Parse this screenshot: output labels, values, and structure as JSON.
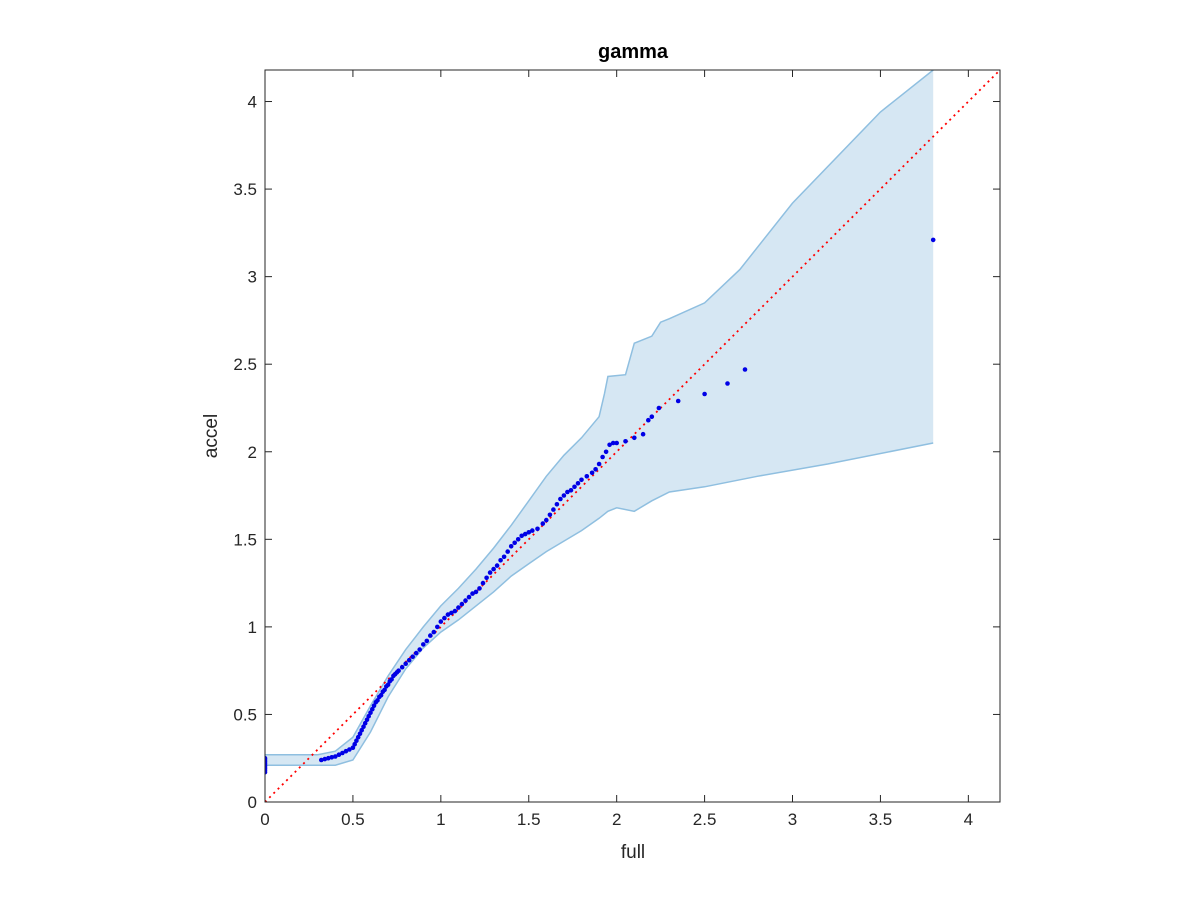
{
  "chart_data": {
    "type": "scatter",
    "title": "gamma",
    "xlabel": "full",
    "ylabel": "accel",
    "xlim": [
      0,
      4.18
    ],
    "ylim": [
      0,
      4.18
    ],
    "xticks": [
      0,
      0.5,
      1,
      1.5,
      2,
      2.5,
      3,
      3.5,
      4
    ],
    "yticks": [
      0,
      0.5,
      1,
      1.5,
      2,
      2.5,
      3,
      3.5,
      4
    ],
    "xtick_labels": [
      "0",
      "0.5",
      "1",
      "1.5",
      "2",
      "2.5",
      "3",
      "3.5",
      "4"
    ],
    "ytick_labels": [
      "0",
      "0.5",
      "1",
      "1.5",
      "2",
      "2.5",
      "3",
      "3.5",
      "4"
    ],
    "grid": false,
    "legend": "none",
    "colors": {
      "points": "#0000e6",
      "band_fill": "#d6e7f3",
      "band_edge": "#8fbfe0",
      "reference_line": "#ff0000"
    },
    "reference_line": {
      "x": [
        0,
        4.18
      ],
      "y": [
        0,
        4.18
      ],
      "style": "dotted"
    },
    "confidence_band": {
      "upper": [
        [
          0,
          0.27
        ],
        [
          0.3,
          0.27
        ],
        [
          0.4,
          0.29
        ],
        [
          0.5,
          0.37
        ],
        [
          0.6,
          0.55
        ],
        [
          0.7,
          0.72
        ],
        [
          0.8,
          0.87
        ],
        [
          0.9,
          1.0
        ],
        [
          1.0,
          1.12
        ],
        [
          1.1,
          1.22
        ],
        [
          1.2,
          1.33
        ],
        [
          1.3,
          1.45
        ],
        [
          1.4,
          1.58
        ],
        [
          1.5,
          1.72
        ],
        [
          1.6,
          1.86
        ],
        [
          1.7,
          1.98
        ],
        [
          1.8,
          2.08
        ],
        [
          1.9,
          2.2
        ],
        [
          1.93,
          2.33
        ],
        [
          1.95,
          2.43
        ],
        [
          2.05,
          2.44
        ],
        [
          2.1,
          2.62
        ],
        [
          2.2,
          2.66
        ],
        [
          2.25,
          2.74
        ],
        [
          2.3,
          2.76
        ],
        [
          2.5,
          2.85
        ],
        [
          2.7,
          3.04
        ],
        [
          3.0,
          3.42
        ],
        [
          3.5,
          3.94
        ],
        [
          3.8,
          4.18
        ]
      ],
      "lower": [
        [
          0,
          0.21
        ],
        [
          0.3,
          0.21
        ],
        [
          0.4,
          0.21
        ],
        [
          0.5,
          0.24
        ],
        [
          0.6,
          0.4
        ],
        [
          0.7,
          0.6
        ],
        [
          0.8,
          0.76
        ],
        [
          0.9,
          0.88
        ],
        [
          1.0,
          0.97
        ],
        [
          1.1,
          1.04
        ],
        [
          1.2,
          1.12
        ],
        [
          1.3,
          1.2
        ],
        [
          1.4,
          1.29
        ],
        [
          1.5,
          1.36
        ],
        [
          1.6,
          1.43
        ],
        [
          1.7,
          1.49
        ],
        [
          1.8,
          1.55
        ],
        [
          1.9,
          1.62
        ],
        [
          1.95,
          1.66
        ],
        [
          2.0,
          1.68
        ],
        [
          2.1,
          1.66
        ],
        [
          2.2,
          1.72
        ],
        [
          2.3,
          1.77
        ],
        [
          2.5,
          1.8
        ],
        [
          2.8,
          1.86
        ],
        [
          3.2,
          1.93
        ],
        [
          3.8,
          2.05
        ]
      ]
    },
    "points": [
      [
        0,
        0.17
      ],
      [
        0,
        0.18
      ],
      [
        0,
        0.19
      ],
      [
        0,
        0.2
      ],
      [
        0,
        0.21
      ],
      [
        0,
        0.22
      ],
      [
        0,
        0.23
      ],
      [
        0,
        0.24
      ],
      [
        0,
        0.25
      ],
      [
        0.32,
        0.24
      ],
      [
        0.34,
        0.245
      ],
      [
        0.36,
        0.25
      ],
      [
        0.38,
        0.255
      ],
      [
        0.4,
        0.26
      ],
      [
        0.42,
        0.27
      ],
      [
        0.44,
        0.28
      ],
      [
        0.46,
        0.29
      ],
      [
        0.48,
        0.3
      ],
      [
        0.5,
        0.31
      ],
      [
        0.51,
        0.33
      ],
      [
        0.52,
        0.35
      ],
      [
        0.53,
        0.37
      ],
      [
        0.54,
        0.39
      ],
      [
        0.55,
        0.41
      ],
      [
        0.56,
        0.43
      ],
      [
        0.57,
        0.45
      ],
      [
        0.58,
        0.47
      ],
      [
        0.59,
        0.49
      ],
      [
        0.6,
        0.51
      ],
      [
        0.61,
        0.53
      ],
      [
        0.62,
        0.55
      ],
      [
        0.63,
        0.57
      ],
      [
        0.64,
        0.58
      ],
      [
        0.65,
        0.6
      ],
      [
        0.66,
        0.61
      ],
      [
        0.67,
        0.63
      ],
      [
        0.68,
        0.64
      ],
      [
        0.69,
        0.66
      ],
      [
        0.7,
        0.67
      ],
      [
        0.71,
        0.69
      ],
      [
        0.72,
        0.7
      ],
      [
        0.73,
        0.72
      ],
      [
        0.74,
        0.73
      ],
      [
        0.75,
        0.74
      ],
      [
        0.76,
        0.75
      ],
      [
        0.78,
        0.77
      ],
      [
        0.8,
        0.79
      ],
      [
        0.82,
        0.81
      ],
      [
        0.84,
        0.83
      ],
      [
        0.86,
        0.85
      ],
      [
        0.88,
        0.87
      ],
      [
        0.9,
        0.9
      ],
      [
        0.92,
        0.92
      ],
      [
        0.94,
        0.95
      ],
      [
        0.96,
        0.97
      ],
      [
        0.98,
        1.0
      ],
      [
        1.0,
        1.03
      ],
      [
        1.02,
        1.05
      ],
      [
        1.04,
        1.07
      ],
      [
        1.06,
        1.08
      ],
      [
        1.08,
        1.09
      ],
      [
        1.1,
        1.11
      ],
      [
        1.12,
        1.13
      ],
      [
        1.14,
        1.15
      ],
      [
        1.16,
        1.17
      ],
      [
        1.18,
        1.19
      ],
      [
        1.2,
        1.2
      ],
      [
        1.22,
        1.22
      ],
      [
        1.24,
        1.25
      ],
      [
        1.26,
        1.28
      ],
      [
        1.28,
        1.31
      ],
      [
        1.3,
        1.33
      ],
      [
        1.32,
        1.35
      ],
      [
        1.34,
        1.38
      ],
      [
        1.36,
        1.4
      ],
      [
        1.38,
        1.43
      ],
      [
        1.4,
        1.46
      ],
      [
        1.42,
        1.48
      ],
      [
        1.44,
        1.5
      ],
      [
        1.46,
        1.52
      ],
      [
        1.48,
        1.53
      ],
      [
        1.5,
        1.54
      ],
      [
        1.52,
        1.55
      ],
      [
        1.55,
        1.56
      ],
      [
        1.58,
        1.59
      ],
      [
        1.6,
        1.61
      ],
      [
        1.62,
        1.64
      ],
      [
        1.64,
        1.67
      ],
      [
        1.66,
        1.7
      ],
      [
        1.68,
        1.73
      ],
      [
        1.7,
        1.75
      ],
      [
        1.72,
        1.77
      ],
      [
        1.74,
        1.78
      ],
      [
        1.76,
        1.8
      ],
      [
        1.78,
        1.82
      ],
      [
        1.8,
        1.84
      ],
      [
        1.83,
        1.86
      ],
      [
        1.86,
        1.88
      ],
      [
        1.88,
        1.9
      ],
      [
        1.9,
        1.93
      ],
      [
        1.92,
        1.97
      ],
      [
        1.94,
        2.0
      ],
      [
        1.96,
        2.04
      ],
      [
        1.98,
        2.05
      ],
      [
        2.0,
        2.05
      ],
      [
        2.05,
        2.06
      ],
      [
        2.1,
        2.08
      ],
      [
        2.15,
        2.1
      ],
      [
        2.18,
        2.18
      ],
      [
        2.2,
        2.2
      ],
      [
        2.24,
        2.25
      ],
      [
        2.35,
        2.29
      ],
      [
        2.5,
        2.33
      ],
      [
        2.63,
        2.39
      ],
      [
        2.73,
        2.47
      ],
      [
        3.8,
        3.21
      ]
    ]
  }
}
